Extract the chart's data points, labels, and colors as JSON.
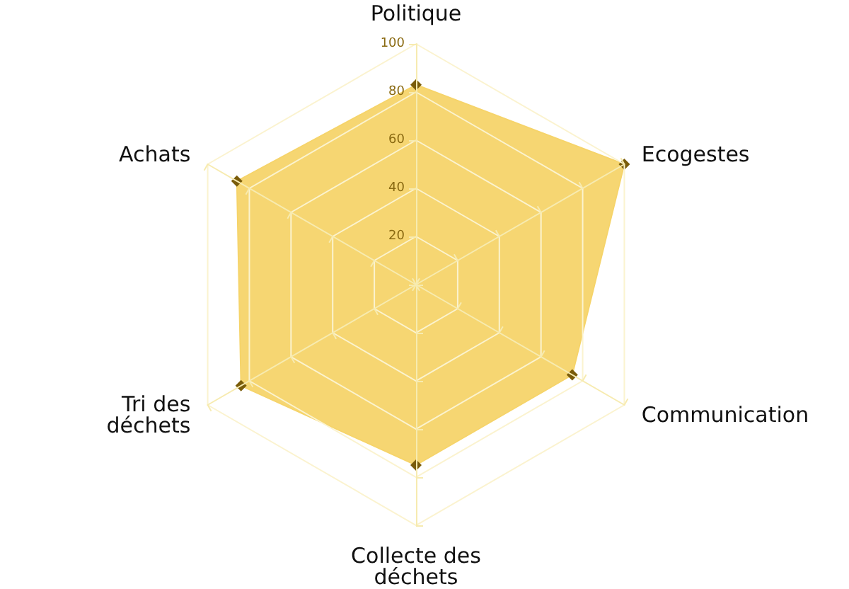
{
  "chart_data": {
    "type": "radar",
    "categories": [
      "Politique",
      "Ecogestes",
      "Communication",
      "Collecte des déchets",
      "Tri des déchets",
      "Achats"
    ],
    "series": [
      {
        "color": "#f6d46a",
        "values": [
          83,
          100,
          75,
          75,
          84,
          86
        ]
      }
    ],
    "ylim": [
      0,
      100
    ],
    "yticks": [
      20,
      40,
      60,
      80,
      100
    ],
    "marker": "diamond",
    "grid": true
  }
}
